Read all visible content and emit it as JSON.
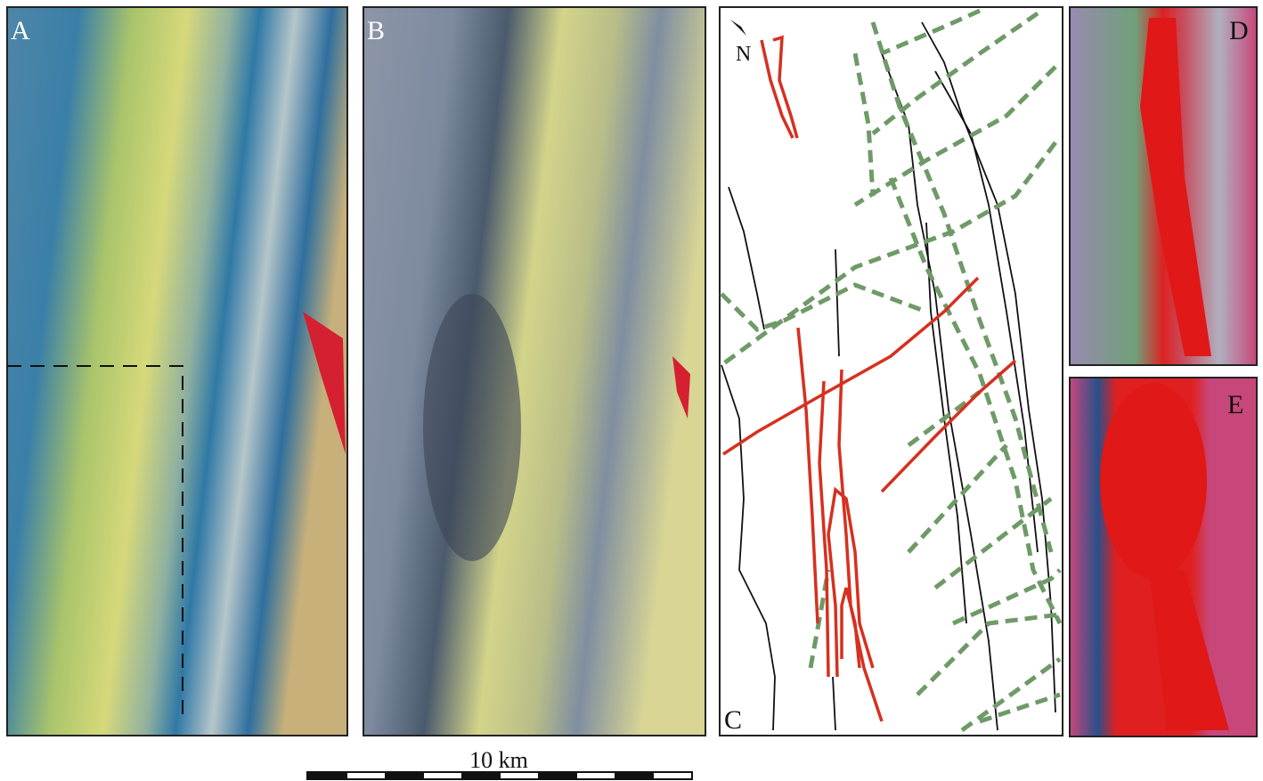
{
  "panels": [
    {
      "label": "A"
    },
    {
      "label": "B"
    },
    {
      "label": "C"
    },
    {
      "label": "D"
    },
    {
      "label": "E"
    }
  ],
  "north_arrow": {
    "label": "N"
  },
  "scale_bar": {
    "label": "10 km"
  }
}
